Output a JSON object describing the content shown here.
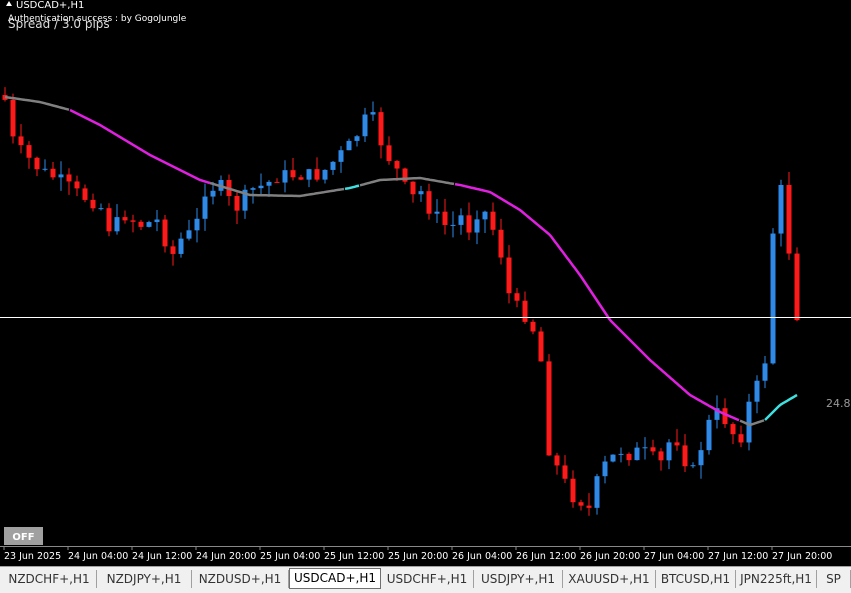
{
  "header": {
    "symbol": "USDCAD+,H1",
    "auth": "Authentication success : by GogoJungle",
    "spread": "Spread / 3.0 pips"
  },
  "indicator_value": "24.8",
  "button": "OFF",
  "time_axis": [
    "23 Jun 2025",
    "24 Jun 04:00",
    "24 Jun 12:00",
    "24 Jun 20:00",
    "25 Jun 04:00",
    "25 Jun 12:00",
    "25 Jun 20:00",
    "26 Jun 04:00",
    "26 Jun 12:00",
    "26 Jun 20:00",
    "27 Jun 04:00",
    "27 Jun 12:00",
    "27 Jun 20:00"
  ],
  "tabs": [
    "NZDCHF+,H1",
    "NZDJPY+,H1",
    "NZDUSD+,H1",
    "USDCAD+,H1",
    "USDCHF+,H1",
    "USDJPY+,H1",
    "XAUUSD+,H1",
    "BTCUSD,H1",
    "JPN225ft,H1",
    "SP"
  ]
}
